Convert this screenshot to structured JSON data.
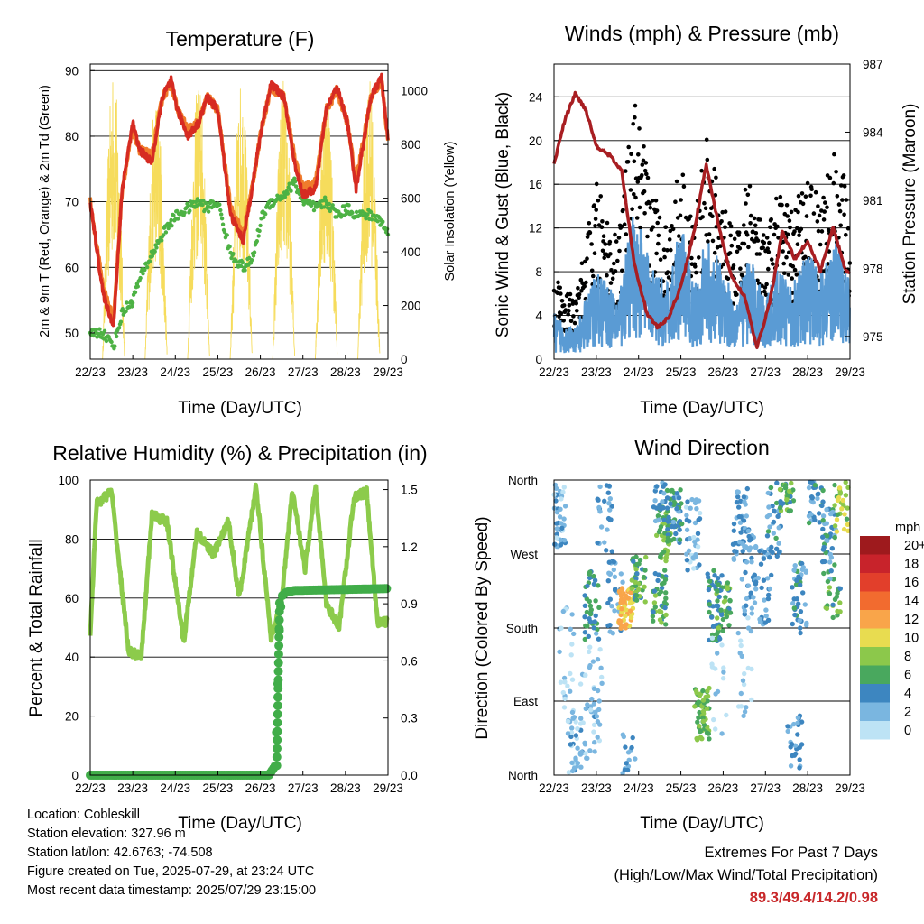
{
  "palette": {
    "temp_red": "#d62b22",
    "temp_orange": "#f07c2c",
    "dewpoint_green": "#4db244",
    "insolation_yellow": "#f6dc5c",
    "wind_blue": "#5a9bd4",
    "gust_black": "#000000",
    "pressure_maroon": "#a81e22",
    "rh_lightgreen": "#8ccb4b",
    "precip_green": "#41ad49",
    "extremes_red": "#c8282a"
  },
  "x_ticks": [
    "22/23",
    "23/23",
    "24/23",
    "25/23",
    "26/23",
    "27/23",
    "28/23",
    "29/23"
  ],
  "temperature": {
    "title": "Temperature (F)",
    "xlabel": "Time (Day/UTC)",
    "ylabel_left": "2m & 9m T (Red, Orange) & 2m Td (Green)",
    "ylabel_right": "Solar Insolation (Yellow)",
    "left_ticks": [
      "50",
      "60",
      "70",
      "80",
      "90"
    ],
    "right_ticks": [
      "0",
      "200",
      "400",
      "600",
      "800",
      "1000"
    ]
  },
  "winds": {
    "title": "Winds (mph) & Pressure (mb)",
    "xlabel": "Time (Day/UTC)",
    "ylabel_left": "Sonic Wind & Gust (Blue, Black)",
    "ylabel_right": "Station Pressure (Maroon)",
    "left_ticks": [
      "0",
      "4",
      "8",
      "12",
      "16",
      "20",
      "24"
    ],
    "right_ticks": [
      "975",
      "978",
      "981",
      "984",
      "987"
    ]
  },
  "humidity": {
    "title": "Relative Humidity (%) & Precipitation (in)",
    "xlabel": "Time (Day/UTC)",
    "ylabel_left": "Percent & Total Rainfall",
    "left_ticks": [
      "0",
      "20",
      "40",
      "60",
      "80",
      "100"
    ],
    "right_ticks": [
      "0.0",
      "0.3",
      "0.6",
      "0.9",
      "1.2",
      "1.5"
    ]
  },
  "direction": {
    "title": "Wind Direction",
    "xlabel": "Time (Day/UTC)",
    "ylabel_left": "Direction (Colored By Speed)",
    "y_ticks": [
      "North",
      "West",
      "South",
      "East",
      "North"
    ],
    "legend_title": "mph",
    "legend_labels": [
      "20+",
      "18",
      "16",
      "14",
      "12",
      "10",
      "8",
      "6",
      "4",
      "2",
      "0"
    ],
    "legend_colors": [
      "#9e1a1d",
      "#c8232b",
      "#e23f2b",
      "#f26b2f",
      "#f9a54a",
      "#e8dc50",
      "#8cc84b",
      "#49a85e",
      "#3d86c0",
      "#7ab6e0",
      "#bde3f5"
    ]
  },
  "footer": {
    "location": "Location: Cobleskill",
    "elevation": "Station elevation: 327.96 m",
    "latlon": "Station lat/lon: 42.6763; -74.508",
    "created": "Figure created on Tue, 2025-07-29, at 23:24 UTC",
    "recent": "Most recent data timestamp: 2025/07/29 23:15:00"
  },
  "extremes": {
    "line1": "Extremes For Past 7 Days",
    "line2": "(High/Low/Max Wind/Total Precipitation)",
    "values": "89.3/49.4/14.2/0.98"
  },
  "chart_data": [
    {
      "type": "line",
      "title": "Temperature (F)",
      "xlabel": "Time (Day/UTC)",
      "ylabel": "2m & 9m T (Red, Orange) & 2m Td (Green)",
      "ylabel_right": "Solar Insolation (Yellow)",
      "x_days": [
        0,
        0.3,
        0.55,
        0.75,
        1.0,
        1.15,
        1.45,
        1.7,
        1.9,
        2.05,
        2.3,
        2.55,
        2.75,
        3.0,
        3.3,
        3.6,
        3.8,
        4.05,
        4.25,
        4.55,
        4.8,
        5.0,
        5.3,
        5.55,
        5.8,
        6.05,
        6.25,
        6.6,
        6.85,
        7.0
      ],
      "ylim": [
        46,
        91
      ],
      "ylim_right": [
        0,
        1100
      ],
      "series": [
        {
          "name": "2m T",
          "axis": "left",
          "values": [
            70,
            56,
            51,
            72,
            82,
            78,
            76,
            86,
            88.5,
            84,
            80,
            82,
            86,
            84,
            68,
            64,
            72,
            82,
            88,
            86,
            76,
            71,
            72,
            84,
            87.5,
            82,
            72,
            86,
            89,
            79
          ]
        },
        {
          "name": "9m T",
          "axis": "left",
          "values": [
            70,
            57,
            52,
            72,
            81,
            78,
            77,
            86,
            88,
            84,
            81,
            82,
            86,
            84,
            69,
            65,
            72,
            82,
            87.5,
            86,
            77,
            72,
            73,
            84,
            87,
            82,
            73,
            86,
            88.5,
            79
          ]
        },
        {
          "name": "2m Td",
          "axis": "left",
          "values": [
            50,
            50,
            48,
            53,
            55,
            58,
            62,
            65,
            67,
            68,
            69,
            70,
            69,
            70,
            62,
            60,
            61,
            68,
            70,
            71,
            73,
            70,
            69,
            70,
            68,
            69,
            68,
            68,
            67,
            65
          ]
        },
        {
          "name": "Solar Insolation",
          "axis": "right",
          "days": [
            0.55,
            1.55,
            2.55,
            3.55,
            4.55,
            5.55,
            6.55
          ],
          "peaks": [
            1080,
            1000,
            1050,
            1040,
            1050,
            1030,
            1060
          ]
        }
      ]
    },
    {
      "type": "scatter",
      "title": "Winds (mph) & Pressure (mb)",
      "xlabel": "Time (Day/UTC)",
      "ylabel": "Sonic Wind & Gust (Blue, Black)",
      "ylabel_right": "Station Pressure (Maroon)",
      "ylim": [
        0,
        27
      ],
      "ylim_right": [
        974,
        987
      ],
      "x_days": [
        0,
        0.5,
        1.0,
        1.5,
        1.9,
        2.3,
        2.7,
        3.0,
        3.3,
        3.6,
        4.0,
        4.3,
        4.6,
        5.0,
        5.3,
        5.6,
        6.0,
        6.3,
        6.7,
        7.0
      ],
      "series": [
        {
          "name": "Wind",
          "values": [
            3,
            2,
            6,
            4,
            10,
            6,
            5,
            9,
            5,
            8,
            6,
            4,
            7,
            4,
            6,
            5,
            7,
            6,
            8,
            5
          ]
        },
        {
          "name": "Gust",
          "values": [
            6,
            4,
            12,
            8,
            18,
            12,
            9,
            14,
            9,
            15,
            11,
            8,
            13,
            8,
            12,
            10,
            13,
            11,
            15,
            10
          ]
        },
        {
          "name": "Station Pressure",
          "days": [
            0,
            0.25,
            0.5,
            0.75,
            1.0,
            1.3,
            1.6,
            1.9,
            2.2,
            2.45,
            2.7,
            3.0,
            3.3,
            3.6,
            3.9,
            4.2,
            4.5,
            4.8,
            5.1,
            5.4,
            5.7,
            6.0,
            6.3,
            6.6,
            6.9,
            7.0
          ],
          "values": [
            982.6,
            984.5,
            985.7,
            985.0,
            983.4,
            983.0,
            982.3,
            978.2,
            976.0,
            975.4,
            975.8,
            977.2,
            979.5,
            982.6,
            979.8,
            977.6,
            976.8,
            974.5,
            976.5,
            979.6,
            978.4,
            979.2,
            977.9,
            979.8,
            977.9,
            977.8
          ]
        }
      ]
    },
    {
      "type": "line",
      "title": "Relative Humidity (%) & Precipitation (in)",
      "xlabel": "Time (Day/UTC)",
      "ylabel": "Percent & Total Rainfall",
      "ylim": [
        0,
        100
      ],
      "ylim_right": [
        0,
        1.55
      ],
      "series": [
        {
          "name": "Relative Humidity",
          "axis": "left",
          "x_days": [
            0,
            0.15,
            0.5,
            0.9,
            1.2,
            1.45,
            1.8,
            2.2,
            2.5,
            2.9,
            3.25,
            3.5,
            3.9,
            4.25,
            4.5,
            4.75,
            5.05,
            5.3,
            5.55,
            5.85,
            6.2,
            6.5,
            6.75,
            6.95,
            7.0
          ],
          "values": [
            48,
            92,
            96,
            42,
            40,
            88,
            86,
            45,
            82,
            75,
            86,
            60,
            98,
            46,
            60,
            96,
            70,
            98,
            58,
            50,
            94,
            96,
            52,
            52,
            52
          ]
        },
        {
          "name": "Total Precipitation",
          "axis": "right",
          "x_days": [
            0,
            4.2,
            4.35,
            4.4,
            4.45,
            4.5,
            4.6,
            4.8,
            7.0
          ],
          "values": [
            0,
            0,
            0.05,
            0.4,
            0.8,
            0.94,
            0.96,
            0.97,
            0.98
          ]
        }
      ]
    },
    {
      "type": "scatter",
      "title": "Wind Direction",
      "xlabel": "Time (Day/UTC)",
      "ylabel": "Direction (Colored By Speed)",
      "y_categories": [
        "North",
        "West",
        "South",
        "East",
        "North"
      ],
      "color_scale": "mph"
    }
  ]
}
